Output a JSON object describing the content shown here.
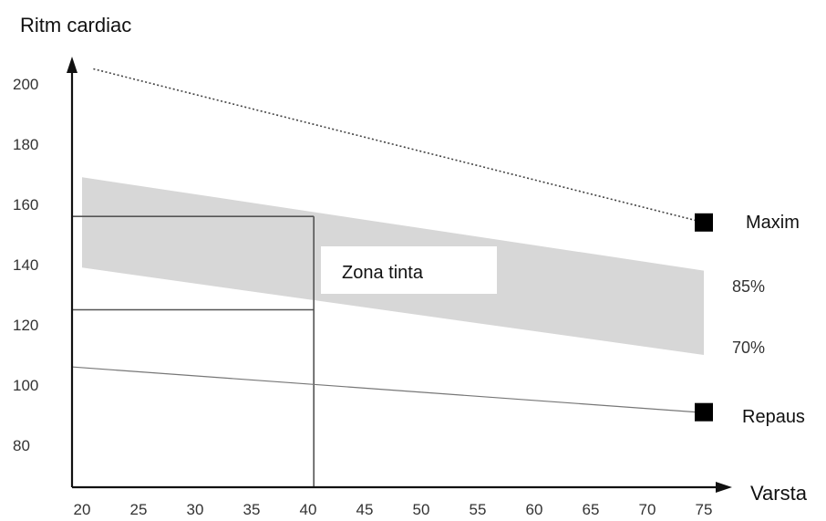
{
  "chart_data": {
    "type": "line",
    "ylabel": "Ritm cardiac",
    "xlabel": "Varsta",
    "x_ticks": [
      20,
      25,
      30,
      35,
      40,
      45,
      50,
      55,
      60,
      65,
      70,
      75
    ],
    "y_ticks": [
      80,
      100,
      120,
      140,
      160,
      180,
      200
    ],
    "xlim": [
      20,
      75
    ],
    "ylim": [
      65,
      212
    ],
    "maxim": {
      "label": "Maxim",
      "style": "dotted",
      "points": [
        [
          21,
          205
        ],
        [
          75,
          154
        ]
      ]
    },
    "target_zone": {
      "label": "Zona tinta",
      "upper_label": "85%",
      "lower_label": "70%",
      "upper": [
        [
          20,
          169
        ],
        [
          75,
          138
        ]
      ],
      "lower": [
        [
          20,
          139
        ],
        [
          75,
          110
        ]
      ]
    },
    "repaus": {
      "label": "Repaus",
      "points": [
        [
          20,
          106
        ],
        [
          75,
          91
        ]
      ]
    },
    "example": {
      "age": 40.5,
      "upper_hr": 156,
      "lower_hr": 125
    },
    "colors": {
      "band": "#d7d7d7",
      "line": "#555555",
      "axis": "#111111",
      "marker": "#000000"
    }
  }
}
